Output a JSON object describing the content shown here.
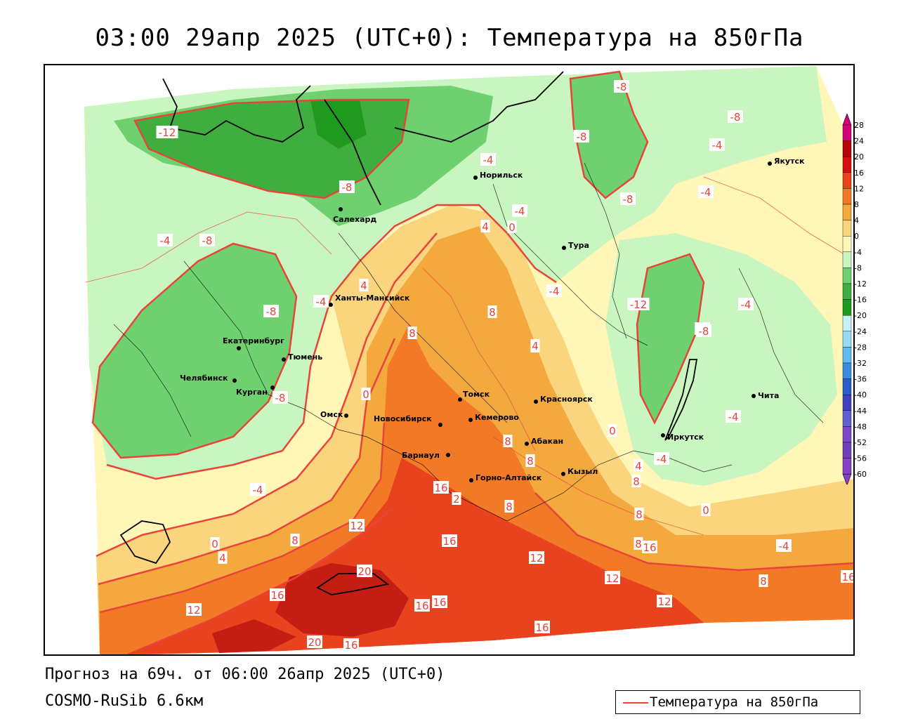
{
  "title": "03:00 29апр 2025 (UTC+0): Температура на 850гПа",
  "footer": {
    "forecast": "Прогноз на 69ч. от 06:00 26апр 2025 (UTC+0)",
    "model": "COSMO-RuSib 6.6км"
  },
  "legend": {
    "label": "Температура на 850гПа",
    "color": "#e8443a"
  },
  "colors": {
    "t_m16": "#1f9a1f",
    "t_m12": "#3fae3f",
    "t_m8": "#6fd06f",
    "t_m4": "#c8f5c0",
    "t_0": "#fff6b8",
    "t_4": "#fbd57e",
    "t_8": "#f4a93e",
    "t_12": "#f27a26",
    "t_16": "#e8421e",
    "t_20": "#c41e14",
    "t_24": "#a00f0c",
    "isoline": "#e8443a"
  },
  "colorbar": {
    "labels": [
      "28",
      "24",
      "20",
      "16",
      "12",
      "8",
      "4",
      "0",
      "-4",
      "-8",
      "-12",
      "-16",
      "-20",
      "-24",
      "-28",
      "-32",
      "-36",
      "-40",
      "-44",
      "-48",
      "-52",
      "-56",
      "-60"
    ],
    "colors": [
      "#d4007a",
      "#b8000a",
      "#d41010",
      "#e8421e",
      "#f27a26",
      "#f4a93e",
      "#fbd57e",
      "#fff6b8",
      "#c8f5c0",
      "#6fd06f",
      "#3fae3f",
      "#1f9a1f",
      "#c8f0f8",
      "#98dcf4",
      "#60bcf0",
      "#3a8ce0",
      "#2a5ccc",
      "#4040c0",
      "#6060d0",
      "#7a48c8",
      "#7040b8",
      "#8840c8"
    ]
  },
  "cities": [
    {
      "name": "Якутск"
    },
    {
      "name": "Норильск"
    },
    {
      "name": "Салехард"
    },
    {
      "name": "Тура"
    },
    {
      "name": "Ханты-Мансийск"
    },
    {
      "name": "Екатеринбург"
    },
    {
      "name": "Тюмень"
    },
    {
      "name": "Челябинск"
    },
    {
      "name": "Курган"
    },
    {
      "name": "Омск"
    },
    {
      "name": "Томск"
    },
    {
      "name": "Красноярск"
    },
    {
      "name": "Новосибирск"
    },
    {
      "name": "Кемерово"
    },
    {
      "name": "Абакан"
    },
    {
      "name": "Барнаул"
    },
    {
      "name": "Горно-Алтайск"
    },
    {
      "name": "Кызыл"
    },
    {
      "name": "Иркутск"
    },
    {
      "name": "Чита"
    }
  ],
  "isolabels": [
    "-8",
    "-8",
    "-8",
    "-4",
    "-4",
    "-4",
    "-8",
    "-8",
    "-4",
    "-8",
    "-12",
    "-4",
    "-8",
    "-12",
    "-4",
    "-4",
    "4",
    "0",
    "4",
    "8",
    "-4",
    "4",
    "-8",
    "-4",
    "-8",
    "8",
    "-4",
    "0",
    "0",
    "-8",
    "-4",
    "4",
    "8",
    "8",
    "0",
    "-4",
    "0",
    "8",
    "16",
    "12",
    "2",
    "8",
    "16",
    "12",
    "8",
    "0",
    "4",
    "8",
    "12",
    "4",
    "20",
    "16",
    "12",
    "16",
    "16",
    "16",
    "12",
    "8",
    "12",
    "16",
    "20",
    "16",
    "8",
    "16"
  ]
}
